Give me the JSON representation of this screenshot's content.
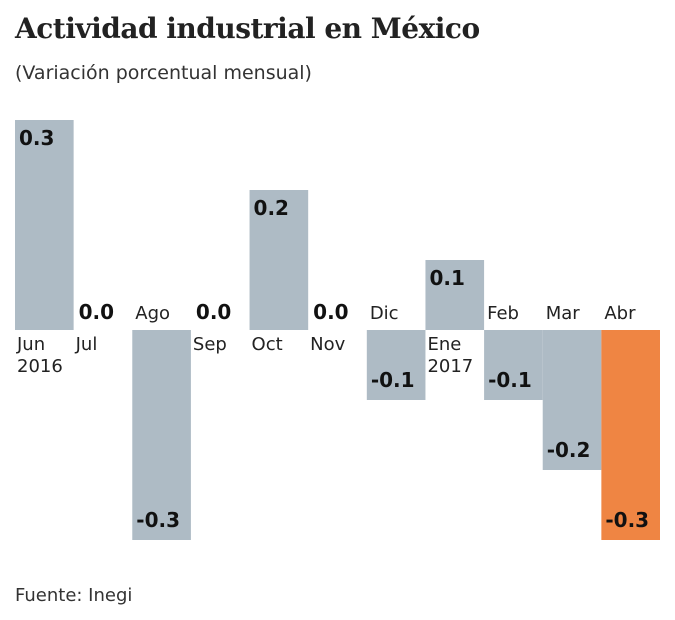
{
  "chart_data": {
    "type": "bar",
    "title": "Actividad industrial en México",
    "subtitle": "(Variación porcentual mensual)",
    "source": "Fuente: Inegi",
    "categories": [
      "Jun 2016",
      "Jul",
      "Ago",
      "Sep",
      "Oct",
      "Nov",
      "Dic",
      "Ene 2017",
      "Feb",
      "Mar",
      "Abr"
    ],
    "values": [
      0.3,
      0.0,
      -0.3,
      0.0,
      0.2,
      0.0,
      -0.1,
      0.1,
      -0.1,
      -0.2,
      -0.3
    ],
    "value_labels": [
      "0.3",
      "0.0",
      "-0.3",
      "0.0",
      "0.2",
      "0.0",
      "-0.1",
      "0.1",
      "-0.1",
      "-0.2",
      "-0.3"
    ],
    "colors": [
      "#aebbc5",
      "#aebbc5",
      "#aebbc5",
      "#aebbc5",
      "#aebbc5",
      "#aebbc5",
      "#aebbc5",
      "#aebbc5",
      "#aebbc5",
      "#aebbc5",
      "#ef8543"
    ],
    "ylim": [
      -0.3,
      0.3
    ]
  }
}
